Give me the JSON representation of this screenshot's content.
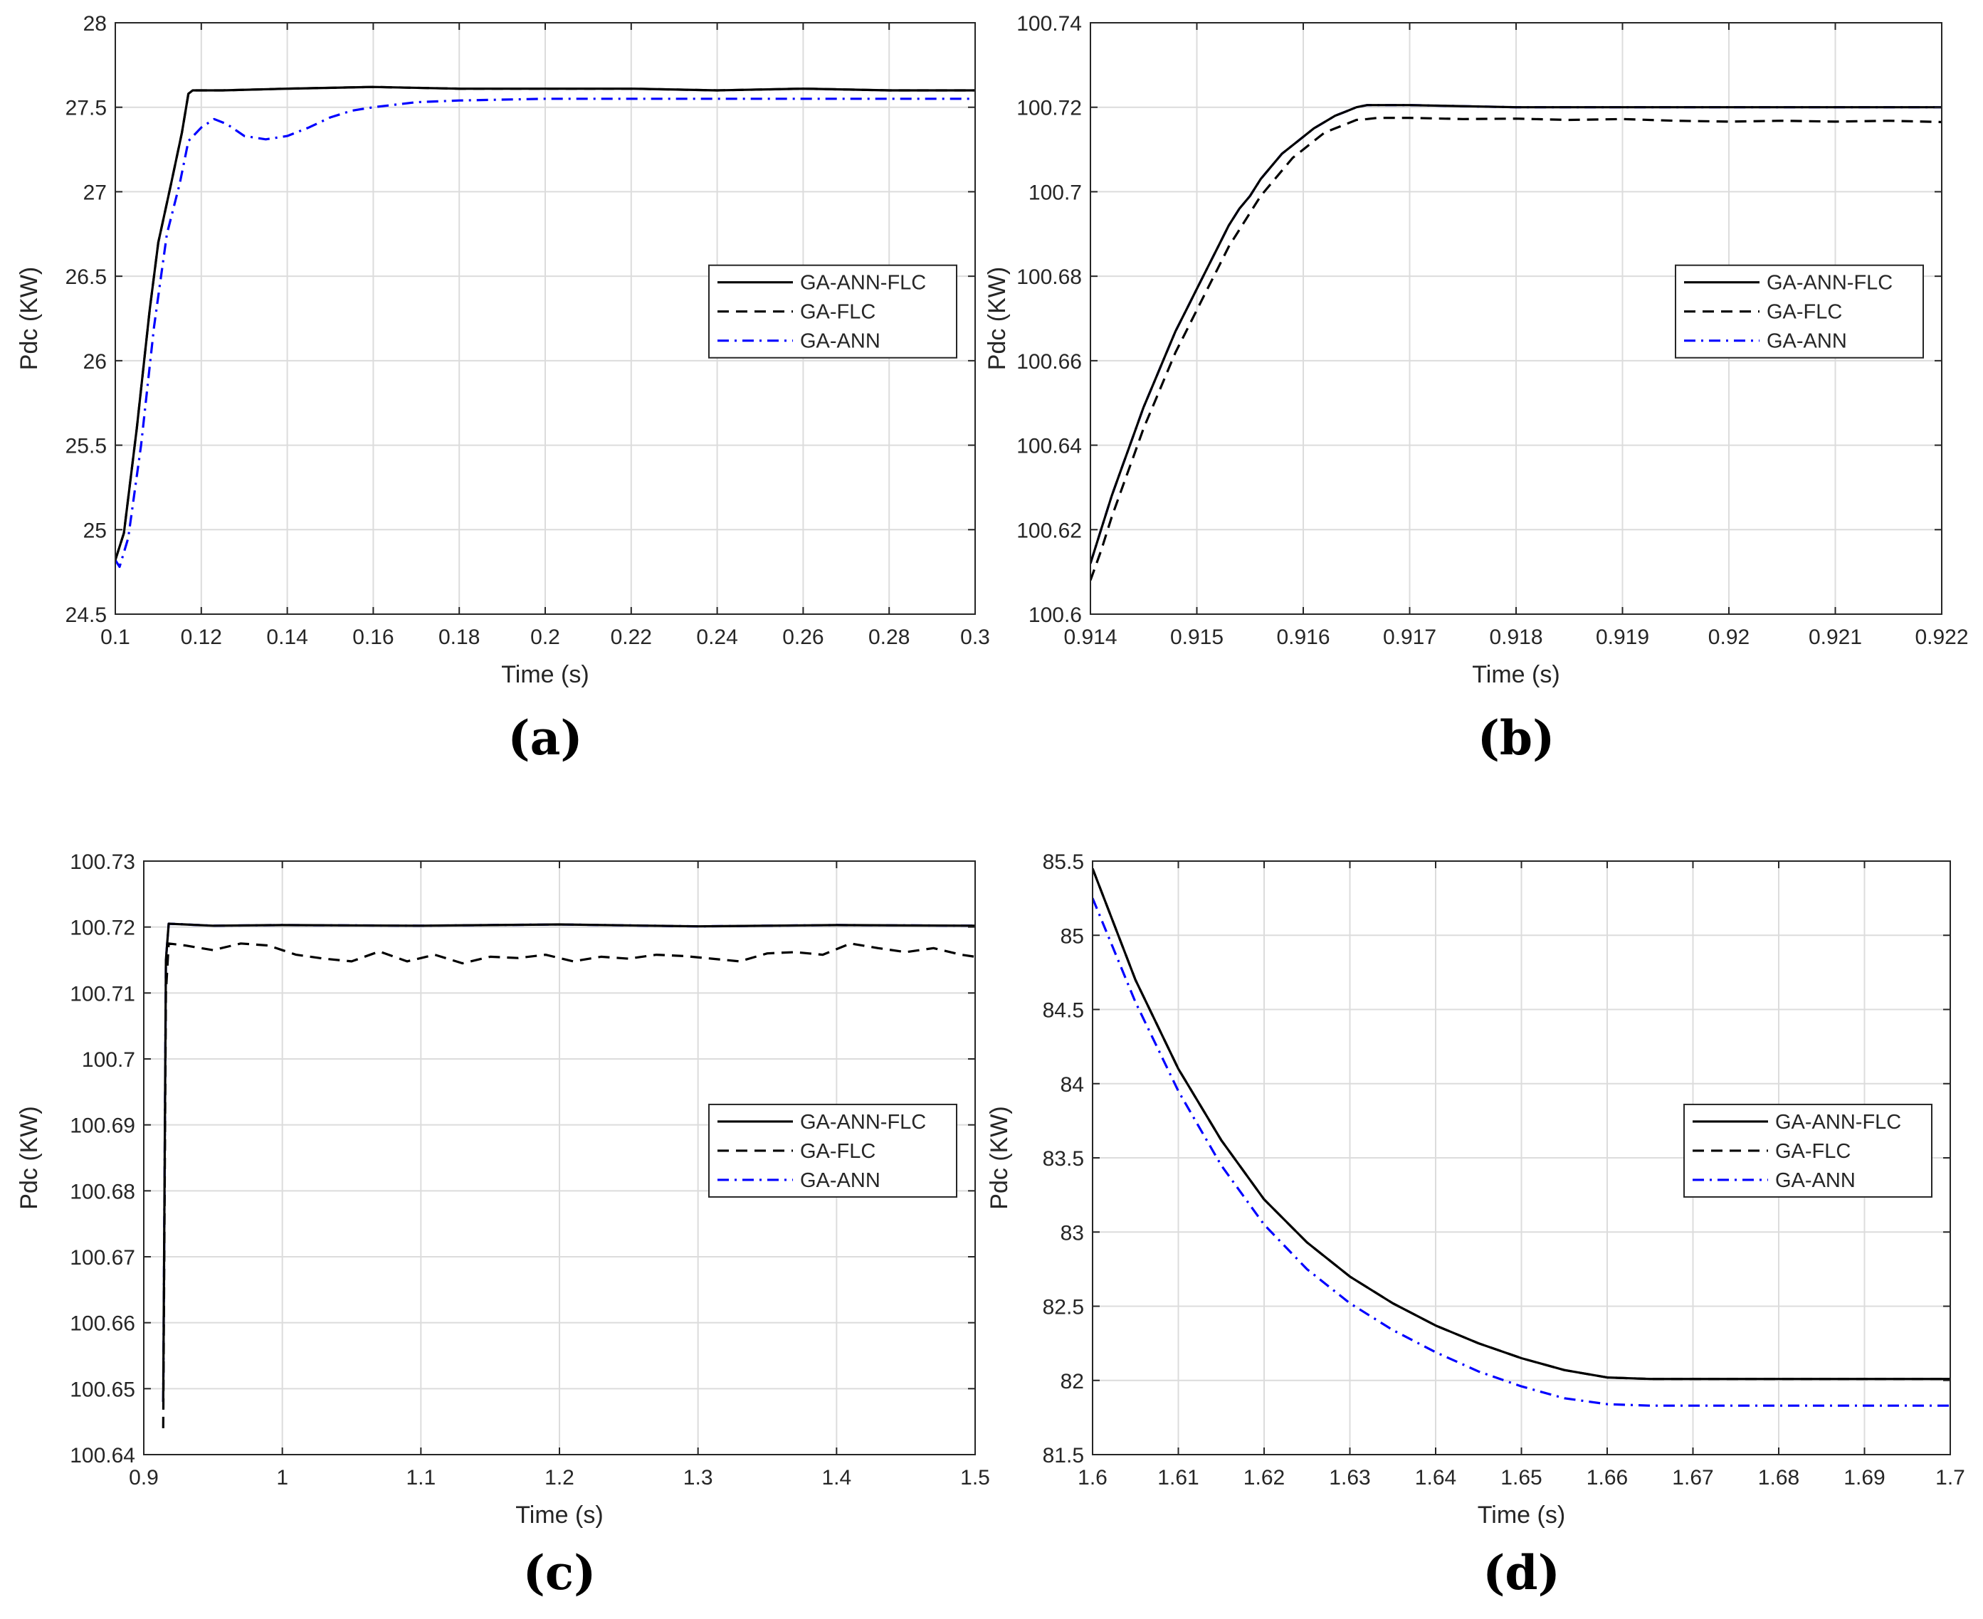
{
  "series_styles": [
    {
      "name": "GA-ANN-FLC",
      "color": "#000000",
      "dash": "solid"
    },
    {
      "name": "GA-FLC",
      "color": "#000000",
      "dash": "dashed"
    },
    {
      "name": "GA-ANN",
      "color": "#0000ff",
      "dash": "dashdot"
    }
  ],
  "chart_data": [
    {
      "type": "line",
      "caption": "(a)",
      "title": "",
      "xlabel": "Time (s)",
      "ylabel": "Pdc (KW)",
      "xlim": [
        0.1,
        0.3
      ],
      "ylim": [
        24.5,
        28
      ],
      "xticks": [
        0.1,
        0.12,
        0.14,
        0.16,
        0.18,
        0.2,
        0.22,
        0.24,
        0.26,
        0.28,
        0.3
      ],
      "xtick_labels": [
        "0.1",
        "0.12",
        "0.14",
        "0.16",
        "0.18",
        "0.2",
        "0.22",
        "0.24",
        "0.26",
        "0.28",
        "0.3"
      ],
      "yticks": [
        24.5,
        25,
        25.5,
        26,
        26.5,
        27,
        27.5,
        28
      ],
      "ytick_labels": [
        "24.5",
        "25",
        "25.5",
        "26",
        "26.5",
        "27",
        "27.5",
        "28"
      ],
      "grid": true,
      "legend": "right",
      "series": [
        {
          "name": "GA-ANN-FLC",
          "x": [
            0.1,
            0.102,
            0.105,
            0.108,
            0.11,
            0.113,
            0.1155,
            0.117,
            0.118,
            0.125,
            0.14,
            0.16,
            0.18,
            0.2,
            0.22,
            0.24,
            0.26,
            0.28,
            0.3
          ],
          "y": [
            24.82,
            24.98,
            25.6,
            26.3,
            26.7,
            27.05,
            27.35,
            27.58,
            27.6,
            27.6,
            27.61,
            27.62,
            27.61,
            27.61,
            27.61,
            27.6,
            27.61,
            27.6,
            27.6
          ]
        },
        {
          "name": "GA-FLC",
          "x": [
            0.1,
            0.102,
            0.105,
            0.108,
            0.11,
            0.113,
            0.1155,
            0.117,
            0.118,
            0.125,
            0.14,
            0.16,
            0.18,
            0.2,
            0.22,
            0.24,
            0.26,
            0.28,
            0.3
          ],
          "y": [
            24.82,
            24.98,
            25.6,
            26.3,
            26.7,
            27.05,
            27.35,
            27.58,
            27.6,
            27.6,
            27.61,
            27.62,
            27.61,
            27.61,
            27.61,
            27.6,
            27.61,
            27.6,
            27.6
          ]
        },
        {
          "name": "GA-ANN",
          "x": [
            0.1,
            0.101,
            0.103,
            0.106,
            0.109,
            0.112,
            0.115,
            0.117,
            0.12,
            0.123,
            0.126,
            0.13,
            0.135,
            0.14,
            0.145,
            0.15,
            0.155,
            0.16,
            0.17,
            0.18,
            0.2,
            0.25,
            0.3
          ],
          "y": [
            24.82,
            24.78,
            24.95,
            25.5,
            26.2,
            26.75,
            27.05,
            27.3,
            27.38,
            27.43,
            27.4,
            27.33,
            27.31,
            27.33,
            27.38,
            27.44,
            27.48,
            27.5,
            27.53,
            27.54,
            27.55,
            27.55,
            27.55
          ]
        }
      ]
    },
    {
      "type": "line",
      "caption": "(b)",
      "title": "",
      "xlabel": "Time (s)",
      "ylabel": "Pdc (KW)",
      "xlim": [
        0.914,
        0.922
      ],
      "ylim": [
        100.6,
        100.74
      ],
      "xticks": [
        0.914,
        0.915,
        0.916,
        0.917,
        0.918,
        0.919,
        0.92,
        0.921,
        0.922
      ],
      "xtick_labels": [
        "0.914",
        "0.915",
        "0.916",
        "0.917",
        "0.918",
        "0.919",
        "0.92",
        "0.921",
        "0.922"
      ],
      "yticks": [
        100.6,
        100.62,
        100.64,
        100.66,
        100.68,
        100.7,
        100.72,
        100.74
      ],
      "ytick_labels": [
        "100.6",
        "100.62",
        "100.64",
        "100.66",
        "100.68",
        "100.7",
        "100.72",
        "100.74"
      ],
      "grid": true,
      "legend": "right",
      "series": [
        {
          "name": "GA-ANN-FLC",
          "x": [
            0.914,
            0.9141,
            0.9142,
            0.9143,
            0.9144,
            0.9145,
            0.9146,
            0.9147,
            0.9148,
            0.9149,
            0.915,
            0.9151,
            0.9152,
            0.9153,
            0.9154,
            0.9155,
            0.9156,
            0.9157,
            0.9158,
            0.9159,
            0.916,
            0.9161,
            0.9162,
            0.9163,
            0.9164,
            0.9165,
            0.9166,
            0.9167,
            0.917,
            0.918,
            0.919,
            0.92,
            0.921,
            0.922
          ],
          "y": [
            100.612,
            100.62,
            100.628,
            100.635,
            100.642,
            100.649,
            100.655,
            100.661,
            100.667,
            100.672,
            100.677,
            100.682,
            100.687,
            100.692,
            100.696,
            100.699,
            100.703,
            100.706,
            100.709,
            100.711,
            100.713,
            100.715,
            100.7165,
            100.718,
            100.719,
            100.72,
            100.7205,
            100.7205,
            100.7205,
            100.72,
            100.72,
            100.72,
            100.72,
            100.72
          ]
        },
        {
          "name": "GA-FLC",
          "x": [
            0.914,
            0.9141,
            0.9142,
            0.9143,
            0.9144,
            0.9145,
            0.9146,
            0.9147,
            0.9148,
            0.9149,
            0.915,
            0.9151,
            0.9152,
            0.9153,
            0.9154,
            0.9155,
            0.9156,
            0.9157,
            0.9158,
            0.9159,
            0.916,
            0.9161,
            0.9162,
            0.9163,
            0.9164,
            0.9165,
            0.9166,
            0.9167,
            0.917,
            0.9175,
            0.918,
            0.9185,
            0.919,
            0.9195,
            0.92,
            0.9205,
            0.921,
            0.9215,
            0.922
          ],
          "y": [
            100.608,
            100.615,
            100.623,
            100.63,
            100.637,
            100.644,
            100.65,
            100.656,
            100.662,
            100.667,
            100.672,
            100.677,
            100.682,
            100.687,
            100.691,
            100.695,
            100.699,
            100.702,
            100.705,
            100.708,
            100.71,
            100.712,
            100.714,
            100.715,
            100.716,
            100.717,
            100.7172,
            100.7175,
            100.7175,
            100.7172,
            100.7173,
            100.717,
            100.7172,
            100.7168,
            100.7166,
            100.7168,
            100.7166,
            100.7168,
            100.7165
          ]
        },
        {
          "name": "GA-ANN",
          "x": [
            0.914,
            0.9141,
            0.9142,
            0.9143,
            0.9144,
            0.9145,
            0.9146,
            0.9147,
            0.9148,
            0.9149,
            0.915,
            0.9151,
            0.9152,
            0.9153,
            0.9154,
            0.9155,
            0.9156,
            0.9157,
            0.9158,
            0.9159,
            0.916,
            0.9161,
            0.9162,
            0.9163,
            0.9164,
            0.9165,
            0.9166,
            0.9167,
            0.917,
            0.918,
            0.919,
            0.92,
            0.921,
            0.922
          ],
          "y": [
            100.612,
            100.62,
            100.628,
            100.635,
            100.642,
            100.649,
            100.655,
            100.661,
            100.667,
            100.672,
            100.677,
            100.682,
            100.687,
            100.692,
            100.696,
            100.699,
            100.703,
            100.706,
            100.709,
            100.711,
            100.713,
            100.715,
            100.7165,
            100.718,
            100.719,
            100.72,
            100.7205,
            100.7205,
            100.7205,
            100.72,
            100.72,
            100.72,
            100.72,
            100.72
          ]
        }
      ]
    },
    {
      "type": "line",
      "caption": "(c)",
      "title": "",
      "xlabel": "Time (s)",
      "ylabel": "Pdc (KW)",
      "xlim": [
        0.9,
        1.5
      ],
      "ylim": [
        100.64,
        100.73
      ],
      "xticks": [
        0.9,
        1.0,
        1.1,
        1.2,
        1.3,
        1.4,
        1.5
      ],
      "xtick_labels": [
        "0.9",
        "1",
        "1.1",
        "1.2",
        "1.3",
        "1.4",
        "1.5"
      ],
      "yticks": [
        100.64,
        100.65,
        100.66,
        100.67,
        100.68,
        100.69,
        100.7,
        100.71,
        100.72,
        100.73
      ],
      "ytick_labels": [
        "100.64",
        "100.65",
        "100.66",
        "100.67",
        "100.68",
        "100.69",
        "100.7",
        "100.71",
        "100.72",
        "100.73"
      ],
      "grid": true,
      "legend": "right",
      "series": [
        {
          "name": "GA-ANN-FLC",
          "x": [
            0.914,
            0.916,
            0.918,
            0.95,
            1.0,
            1.1,
            1.2,
            1.3,
            1.4,
            1.5
          ],
          "y": [
            100.648,
            100.715,
            100.7205,
            100.7202,
            100.7203,
            100.7202,
            100.7204,
            100.7201,
            100.7203,
            100.7202
          ]
        },
        {
          "name": "GA-FLC",
          "x": [
            0.914,
            0.916,
            0.918,
            0.93,
            0.95,
            0.97,
            0.99,
            1.01,
            1.03,
            1.05,
            1.07,
            1.09,
            1.11,
            1.13,
            1.15,
            1.17,
            1.19,
            1.21,
            1.23,
            1.25,
            1.27,
            1.29,
            1.31,
            1.33,
            1.35,
            1.37,
            1.39,
            1.41,
            1.43,
            1.45,
            1.47,
            1.49,
            1.5
          ],
          "y": [
            100.644,
            100.71,
            100.7175,
            100.7172,
            100.7165,
            100.7175,
            100.7172,
            100.7158,
            100.7152,
            100.7148,
            100.7163,
            100.7148,
            100.7158,
            100.7145,
            100.7155,
            100.7153,
            100.7158,
            100.7148,
            100.7155,
            100.7152,
            100.7158,
            100.7156,
            100.7152,
            100.7148,
            100.716,
            100.7162,
            100.7158,
            100.7175,
            100.7168,
            100.7162,
            100.7168,
            100.7158,
            100.7155
          ]
        },
        {
          "name": "GA-ANN",
          "x": [
            0.914,
            0.916,
            0.918,
            0.95,
            1.0,
            1.1,
            1.2,
            1.3,
            1.4,
            1.5
          ],
          "y": [
            100.648,
            100.715,
            100.7205,
            100.7202,
            100.7203,
            100.7202,
            100.7204,
            100.7201,
            100.7203,
            100.7202
          ]
        }
      ]
    },
    {
      "type": "line",
      "caption": "(d)",
      "title": "",
      "xlabel": "Time (s)",
      "ylabel": "Pdc (KW)",
      "xlim": [
        1.6,
        1.7
      ],
      "ylim": [
        81.5,
        85.5
      ],
      "xticks": [
        1.6,
        1.61,
        1.62,
        1.63,
        1.64,
        1.65,
        1.66,
        1.67,
        1.68,
        1.69,
        1.7
      ],
      "xtick_labels": [
        "1.6",
        "1.61",
        "1.62",
        "1.63",
        "1.64",
        "1.65",
        "1.66",
        "1.67",
        "1.68",
        "1.69",
        "1.7"
      ],
      "yticks": [
        81.5,
        82,
        82.5,
        83,
        83.5,
        84,
        84.5,
        85,
        85.5
      ],
      "ytick_labels": [
        "81.5",
        "82",
        "82.5",
        "83",
        "83.5",
        "84",
        "84.5",
        "85",
        "85.5"
      ],
      "grid": true,
      "legend": "right",
      "series": [
        {
          "name": "GA-ANN-FLC",
          "x": [
            1.6,
            1.605,
            1.61,
            1.615,
            1.62,
            1.625,
            1.63,
            1.635,
            1.64,
            1.645,
            1.65,
            1.655,
            1.66,
            1.665,
            1.67,
            1.68,
            1.69,
            1.7
          ],
          "y": [
            85.45,
            84.7,
            84.1,
            83.62,
            83.22,
            82.93,
            82.7,
            82.52,
            82.37,
            82.25,
            82.15,
            82.07,
            82.02,
            82.01,
            82.01,
            82.01,
            82.01,
            82.01
          ]
        },
        {
          "name": "GA-FLC",
          "x": [
            1.6,
            1.605,
            1.61,
            1.615,
            1.62,
            1.625,
            1.63,
            1.635,
            1.64,
            1.645,
            1.65,
            1.655,
            1.66,
            1.665,
            1.67,
            1.68,
            1.69,
            1.7
          ],
          "y": [
            85.45,
            84.7,
            84.1,
            83.62,
            83.22,
            82.93,
            82.7,
            82.52,
            82.37,
            82.25,
            82.15,
            82.07,
            82.02,
            82.01,
            82.01,
            82.01,
            82.01,
            82.01
          ]
        },
        {
          "name": "GA-ANN",
          "x": [
            1.6,
            1.605,
            1.61,
            1.615,
            1.62,
            1.625,
            1.63,
            1.635,
            1.64,
            1.645,
            1.65,
            1.655,
            1.66,
            1.665,
            1.67,
            1.68,
            1.69,
            1.7
          ],
          "y": [
            85.25,
            84.55,
            83.95,
            83.45,
            83.05,
            82.75,
            82.52,
            82.34,
            82.19,
            82.06,
            81.96,
            81.88,
            81.84,
            81.83,
            81.83,
            81.83,
            81.83,
            81.83
          ]
        }
      ]
    }
  ]
}
